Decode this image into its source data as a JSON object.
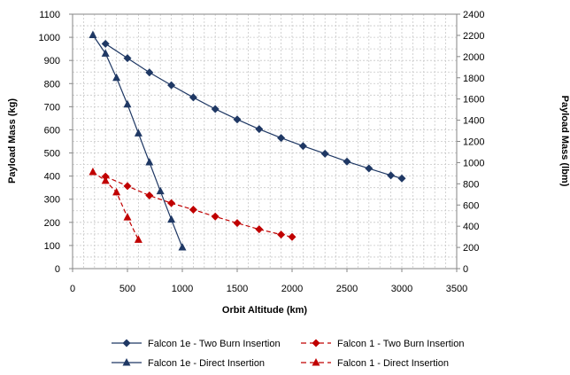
{
  "chart_data": {
    "type": "line",
    "title": "",
    "xlabel": "Orbit Altitude (km)",
    "ylabel": "Payload Mass (kg)",
    "y2label": "Payload Mass (lbm)",
    "xlim": [
      0,
      3500
    ],
    "ylim": [
      0,
      1100
    ],
    "y2lim": [
      0,
      2400
    ],
    "xticks": [
      0,
      500,
      1000,
      1500,
      2000,
      2500,
      3000,
      3500
    ],
    "yticks": [
      0,
      100,
      200,
      300,
      400,
      500,
      600,
      700,
      800,
      900,
      1000,
      1100
    ],
    "y2ticks": [
      0,
      200,
      400,
      600,
      800,
      1000,
      1200,
      1400,
      1600,
      1800,
      2000,
      2200,
      2400
    ],
    "grid": true,
    "legend_position": "bottom",
    "series": [
      {
        "name": "Falcon 1e - Two Burn Insertion",
        "color": "#1F3864",
        "line_style": "solid",
        "marker": "diamond",
        "x": [
          300,
          500,
          700,
          900,
          1100,
          1300,
          1500,
          1700,
          1900,
          2100,
          2300,
          2500,
          2700,
          2900,
          3000
        ],
        "y": [
          972,
          910,
          848,
          793,
          740,
          690,
          645,
          603,
          565,
          530,
          497,
          463,
          433,
          403,
          390
        ]
      },
      {
        "name": "Falcon 1 - Two Burn Insertion",
        "color": "#C00000",
        "line_style": "dashed",
        "marker": "diamond",
        "x": [
          300,
          500,
          700,
          900,
          1100,
          1300,
          1500,
          1700,
          1900,
          2000
        ],
        "y": [
          398,
          357,
          316,
          283,
          255,
          225,
          197,
          170,
          147,
          137
        ]
      },
      {
        "name": "Falcon 1e - Direct Insertion",
        "color": "#1F3864",
        "line_style": "solid",
        "marker": "triangle",
        "x": [
          185,
          300,
          400,
          500,
          600,
          700,
          800,
          900,
          1000
        ],
        "y": [
          1010,
          930,
          825,
          710,
          585,
          460,
          335,
          212,
          92
        ]
      },
      {
        "name": "Falcon 1 - Direct Insertion",
        "color": "#C00000",
        "line_style": "dashed",
        "marker": "triangle",
        "x": [
          185,
          300,
          400,
          500,
          600
        ],
        "y": [
          418,
          380,
          330,
          222,
          125
        ]
      }
    ]
  }
}
